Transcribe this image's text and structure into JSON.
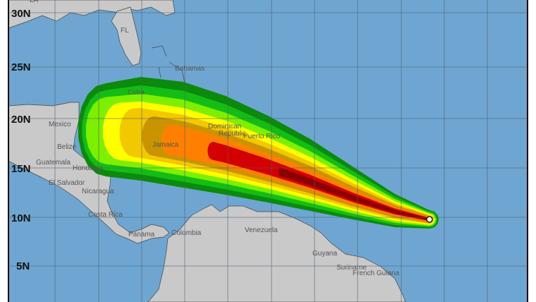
{
  "map": {
    "latitude_labels": [
      "30N",
      "25N",
      "20N",
      "15N",
      "10N",
      "5N"
    ],
    "place_labels": {
      "la": "LA",
      "fl": "FL",
      "bahamas": "Bahamas",
      "cuba": "Cuba",
      "mexico": "Mexico",
      "belize": "Belize",
      "guatemala": "Guatemala",
      "honduras": "Honduras",
      "el_salvador": "El Salvador",
      "nicaragua": "Nicaragua",
      "costa_rica": "Costa Rica",
      "panama": "Panama",
      "colombia": "Colombia",
      "venezuela": "Venezuela",
      "jamaica": "Jamaica",
      "dominican": "Dominican",
      "republic": "Republic",
      "puerto_rico": "Puerto Rico",
      "guyana": "Guyana",
      "suriname": "Suriname",
      "french_guiana": "French Guiana"
    },
    "colors": {
      "ocean": "#6ea6d1",
      "land": "#c9c9c9",
      "probability_bands": [
        "#0b8a0b",
        "#14bd14",
        "#7cf000",
        "#ffff00",
        "#f2c800",
        "#c99400",
        "#ff8000",
        "#d40000",
        "#8b0000"
      ]
    },
    "storm_marker": "current-storm-position-circle"
  }
}
